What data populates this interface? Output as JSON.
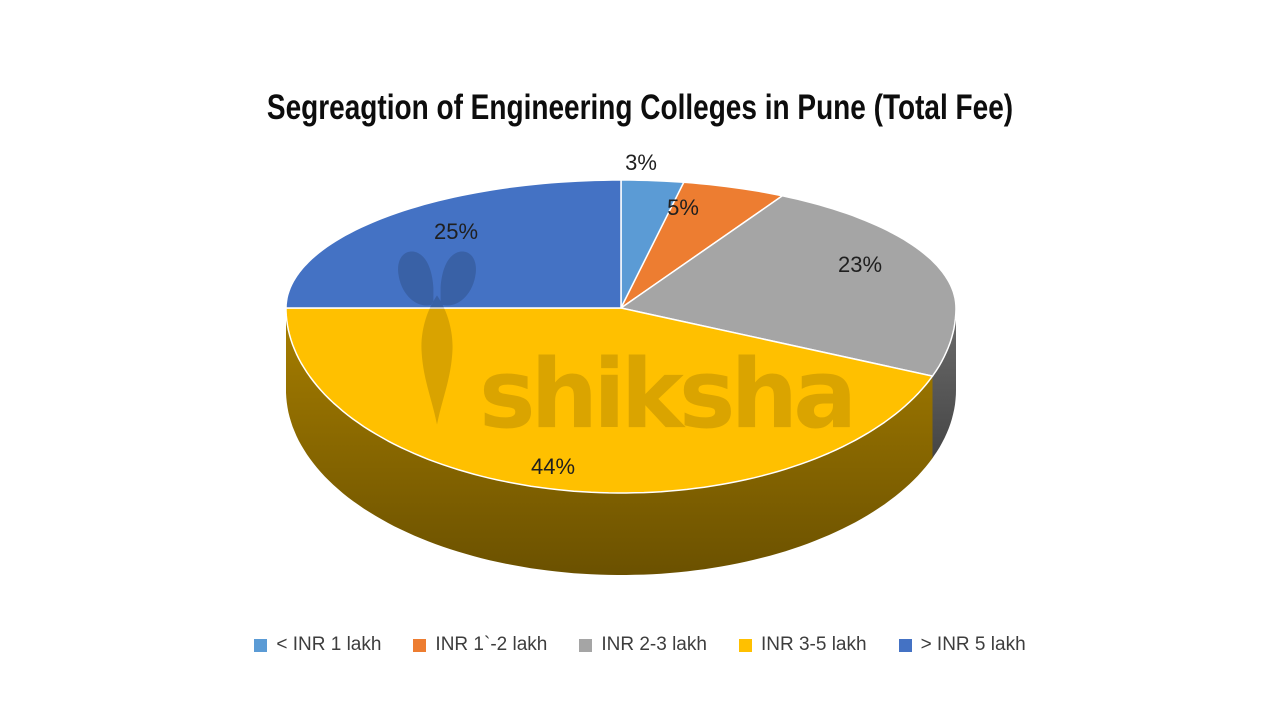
{
  "title": "Segreagtion of Engineering Colleges in Pune (Total Fee)",
  "watermark": {
    "text": "shiksha"
  },
  "chart_data": {
    "type": "pie",
    "style": "3d",
    "title": "Segreagtion of Engineering Colleges in Pune (Total Fee)",
    "unit": "percent",
    "start_angle_deg": 0,
    "direction": "clockwise",
    "legend_position": "bottom",
    "grid": "off",
    "background": "#FFFFFF",
    "categories": [
      "< INR 1 lakh",
      "INR 1`-2 lakh",
      "INR 2-3 lakh",
      "INR 3-5 lakh",
      "> INR 5 lakh"
    ],
    "values": [
      3,
      5,
      23,
      44,
      25
    ],
    "slices": [
      {
        "label": "< INR 1 lakh",
        "value_pct": 3,
        "data_label": "3%",
        "color": "#5B9BD5"
      },
      {
        "label": "INR 1`-2 lakh",
        "value_pct": 5,
        "data_label": "5%",
        "color": "#ED7D31"
      },
      {
        "label": "INR 2-3 lakh",
        "value_pct": 23,
        "data_label": "23%",
        "color": "#A5A5A5"
      },
      {
        "label": "INR 3-5 lakh",
        "value_pct": 44,
        "data_label": "44%",
        "color": "#FFC000"
      },
      {
        "label": "> INR 5 lakh",
        "value_pct": 25,
        "data_label": "25%",
        "color": "#4472C4"
      }
    ]
  }
}
